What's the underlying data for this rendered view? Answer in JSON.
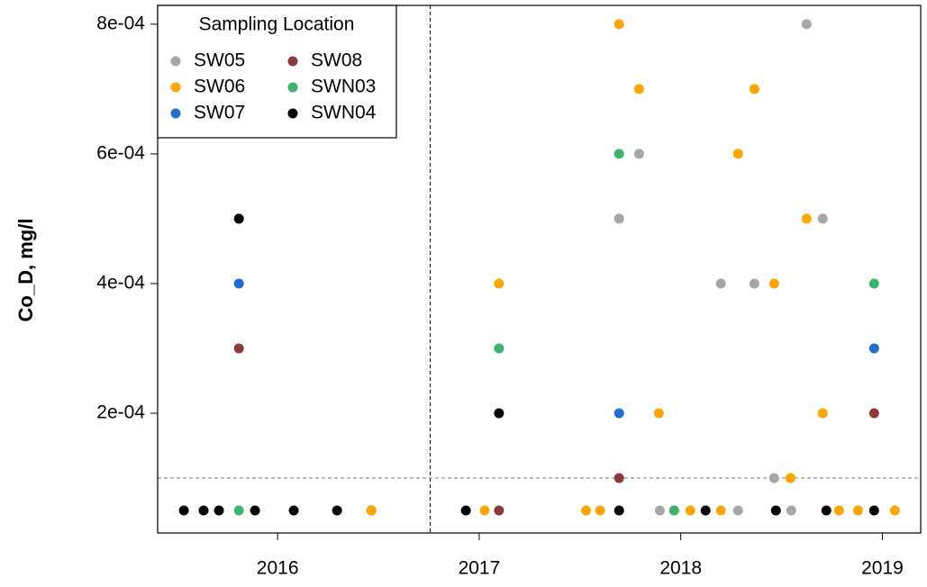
{
  "chart_data": {
    "type": "scatter",
    "y_label": "Co_D, mg/l",
    "legend_title": "Sampling Location",
    "legend_position": "top-left",
    "xlim": [
      2015.405,
      2019.19
    ],
    "ylim": [
      1.53e-05,
      0.000829
    ],
    "xticks": [
      2016,
      2017,
      2018,
      2019
    ],
    "yticks": [
      {
        "value": 0.0002,
        "label": "2e-04"
      },
      {
        "value": 0.0004,
        "label": "4e-04"
      },
      {
        "value": 0.0006,
        "label": "6e-04"
      },
      {
        "value": 0.0008,
        "label": "8e-04"
      }
    ],
    "vline": 2016.757,
    "hline": 0.0001,
    "series": [
      {
        "name": "SW05",
        "color": "#a6a6a6",
        "x": [
          2017.694,
          2017.793,
          2017.896,
          2018.199,
          2018.284,
          2018.365,
          2018.463,
          2018.548,
          2018.624,
          2018.704
        ],
        "values": [
          0.0005,
          0.0006,
          5e-05,
          0.0004,
          5e-05,
          0.0004,
          0.0001,
          5e-05,
          0.0008,
          0.0005
        ]
      },
      {
        "name": "SW06",
        "color": "#ffa500",
        "x": [
          2016.465,
          2017.027,
          2017.098,
          2017.53,
          2017.6,
          2017.694,
          2017.793,
          2017.891,
          2017.967,
          2018.047,
          2018.199,
          2018.284,
          2018.365,
          2018.463,
          2018.544,
          2018.624,
          2018.704,
          2018.785,
          2018.879,
          2019.062
        ],
        "values": [
          5e-05,
          5e-05,
          0.0004,
          5e-05,
          5e-05,
          0.0008,
          0.0007,
          0.0002,
          5e-05,
          5e-05,
          5e-05,
          0.0006,
          0.0007,
          0.0004,
          0.0001,
          0.0005,
          0.0002,
          5e-05,
          5e-05,
          5e-05
        ]
      },
      {
        "name": "SW07",
        "color": "#1f6fd1",
        "x": [
          2015.808,
          2017.694,
          2018.959
        ],
        "values": [
          0.0004,
          0.0002,
          0.0003
        ]
      },
      {
        "name": "SW08",
        "color": "#8b3a3a",
        "x": [
          2015.808,
          2017.098,
          2017.694,
          2018.959
        ],
        "values": [
          0.0003,
          5e-05,
          0.0001,
          0.0002
        ]
      },
      {
        "name": "SWN03",
        "color": "#3cb371",
        "x": [
          2015.808,
          2017.098,
          2017.694,
          2017.967,
          2018.959
        ],
        "values": [
          5e-05,
          0.0003,
          0.0006,
          5e-05,
          0.0004
        ]
      },
      {
        "name": "SWN04",
        "color": "#000000",
        "x": [
          2015.535,
          2015.633,
          2015.709,
          2015.808,
          2015.888,
          2016.08,
          2016.295,
          2016.465,
          2016.934,
          2017.098,
          2017.694,
          2018.123,
          2018.472,
          2018.722,
          2018.959
        ],
        "values": [
          5e-05,
          5e-05,
          5e-05,
          0.0005,
          5e-05,
          5e-05,
          5e-05,
          5e-05,
          5e-05,
          0.0002,
          5e-05,
          5e-05,
          5e-05,
          5e-05,
          5e-05
        ]
      }
    ]
  }
}
